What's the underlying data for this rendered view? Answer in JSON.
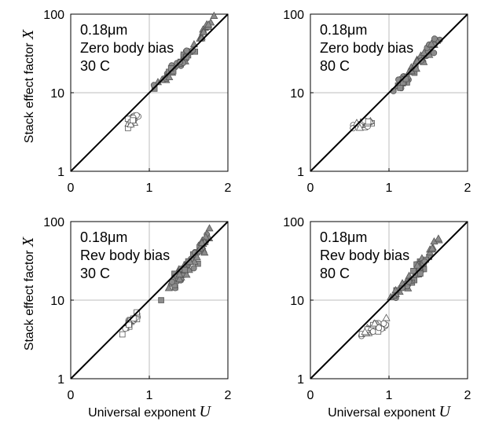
{
  "ylabel_text": "Stack effect factor",
  "ylabel_symbol": "X",
  "xlabel_text": "Universal exponent",
  "xlabel_symbol": "U",
  "colors": {
    "filled": "#8c8c8c",
    "open": "#ffffff",
    "edge": "#555555",
    "line": "#000000",
    "grid": "#bdbdbd"
  },
  "chart_data": [
    {
      "type": "scatter",
      "annotation": [
        "0.18μm",
        "Zero body bias",
        "30 C"
      ],
      "xlim": [
        0,
        2
      ],
      "ylim": [
        1,
        100
      ],
      "yscale": "log",
      "grid": true,
      "xticks": [
        "0",
        "1",
        "2"
      ],
      "yticks": [
        "1",
        "10",
        "100"
      ],
      "reference_line": "y = 10^x",
      "clusters": [
        {
          "cx": 0.78,
          "cy": 0.64,
          "sx": 0.1,
          "sy": 0.07,
          "n": 26,
          "markers": [
            "circle",
            "square",
            "triangle"
          ],
          "fill": "open",
          "spread": 0.05
        },
        {
          "cx": 1.35,
          "cy": 1.35,
          "sx": 0.22,
          "sy": 0.22,
          "n": 45,
          "markers": [
            "triangle",
            "circle",
            "square"
          ],
          "fill": "filled",
          "spread": 0.05
        },
        {
          "cx": 1.7,
          "cy": 1.8,
          "sx": 0.08,
          "sy": 0.12,
          "n": 12,
          "markers": [
            "triangle"
          ],
          "fill": "filled",
          "spread": 0.07
        }
      ]
    },
    {
      "type": "scatter",
      "annotation": [
        "0.18μm",
        "Zero body bias",
        "80 C"
      ],
      "xlim": [
        0,
        2
      ],
      "ylim": [
        1,
        100
      ],
      "yscale": "log",
      "grid": true,
      "xticks": [
        "0",
        "1",
        "2"
      ],
      "yticks": [
        "1",
        "10",
        "100"
      ],
      "reference_line": "y = 10^x",
      "clusters": [
        {
          "cx": 0.7,
          "cy": 0.6,
          "sx": 0.14,
          "sy": 0.05,
          "n": 24,
          "markers": [
            "square",
            "circle",
            "triangle"
          ],
          "fill": "open",
          "spread": 0.04
        },
        {
          "cx": 1.25,
          "cy": 1.25,
          "sx": 0.2,
          "sy": 0.22,
          "n": 45,
          "markers": [
            "triangle",
            "circle",
            "square"
          ],
          "fill": "filled",
          "spread": 0.06
        },
        {
          "cx": 1.55,
          "cy": 1.6,
          "sx": 0.08,
          "sy": 0.1,
          "n": 10,
          "markers": [
            "triangle",
            "circle"
          ],
          "fill": "filled",
          "spread": 0.12
        }
      ]
    },
    {
      "type": "scatter",
      "annotation": [
        "0.18μm",
        "Rev body bias",
        "30 C"
      ],
      "xlim": [
        0,
        2
      ],
      "ylim": [
        1,
        100
      ],
      "yscale": "log",
      "grid": true,
      "xticks": [
        "0",
        "1",
        "2"
      ],
      "yticks": [
        "1",
        "10",
        "100"
      ],
      "reference_line": "y = 10^x",
      "clusters": [
        {
          "cx": 0.76,
          "cy": 0.72,
          "sx": 0.1,
          "sy": 0.1,
          "n": 24,
          "markers": [
            "circle",
            "square"
          ],
          "fill": "open",
          "spread": 0.05
        },
        {
          "cx": 1.45,
          "cy": 1.4,
          "sx": 0.2,
          "sy": 0.25,
          "n": 60,
          "markers": [
            "triangle",
            "circle",
            "square"
          ],
          "fill": "filled",
          "spread": 0.1
        },
        {
          "cx": 1.7,
          "cy": 1.75,
          "sx": 0.08,
          "sy": 0.12,
          "n": 14,
          "markers": [
            "triangle"
          ],
          "fill": "filled",
          "spread": 0.12
        }
      ]
    },
    {
      "type": "scatter",
      "annotation": [
        "0.18μm",
        "Rev body bias",
        "80 C"
      ],
      "xlim": [
        0,
        2
      ],
      "ylim": [
        1,
        100
      ],
      "yscale": "log",
      "grid": true,
      "xticks": [
        "0",
        "1",
        "2"
      ],
      "yticks": [
        "1",
        "10",
        "100"
      ],
      "reference_line": "y = 10^x",
      "clusters": [
        {
          "cx": 0.82,
          "cy": 0.65,
          "sx": 0.14,
          "sy": 0.08,
          "n": 34,
          "markers": [
            "triangle",
            "square",
            "circle"
          ],
          "fill": "open",
          "spread": 0.06
        },
        {
          "cx": 1.3,
          "cy": 1.3,
          "sx": 0.2,
          "sy": 0.22,
          "n": 50,
          "markers": [
            "triangle",
            "circle",
            "square"
          ],
          "fill": "filled",
          "spread": 0.08
        },
        {
          "cx": 1.58,
          "cy": 1.7,
          "sx": 0.06,
          "sy": 0.08,
          "n": 8,
          "markers": [
            "triangle"
          ],
          "fill": "filled",
          "spread": 0.06
        }
      ]
    }
  ]
}
